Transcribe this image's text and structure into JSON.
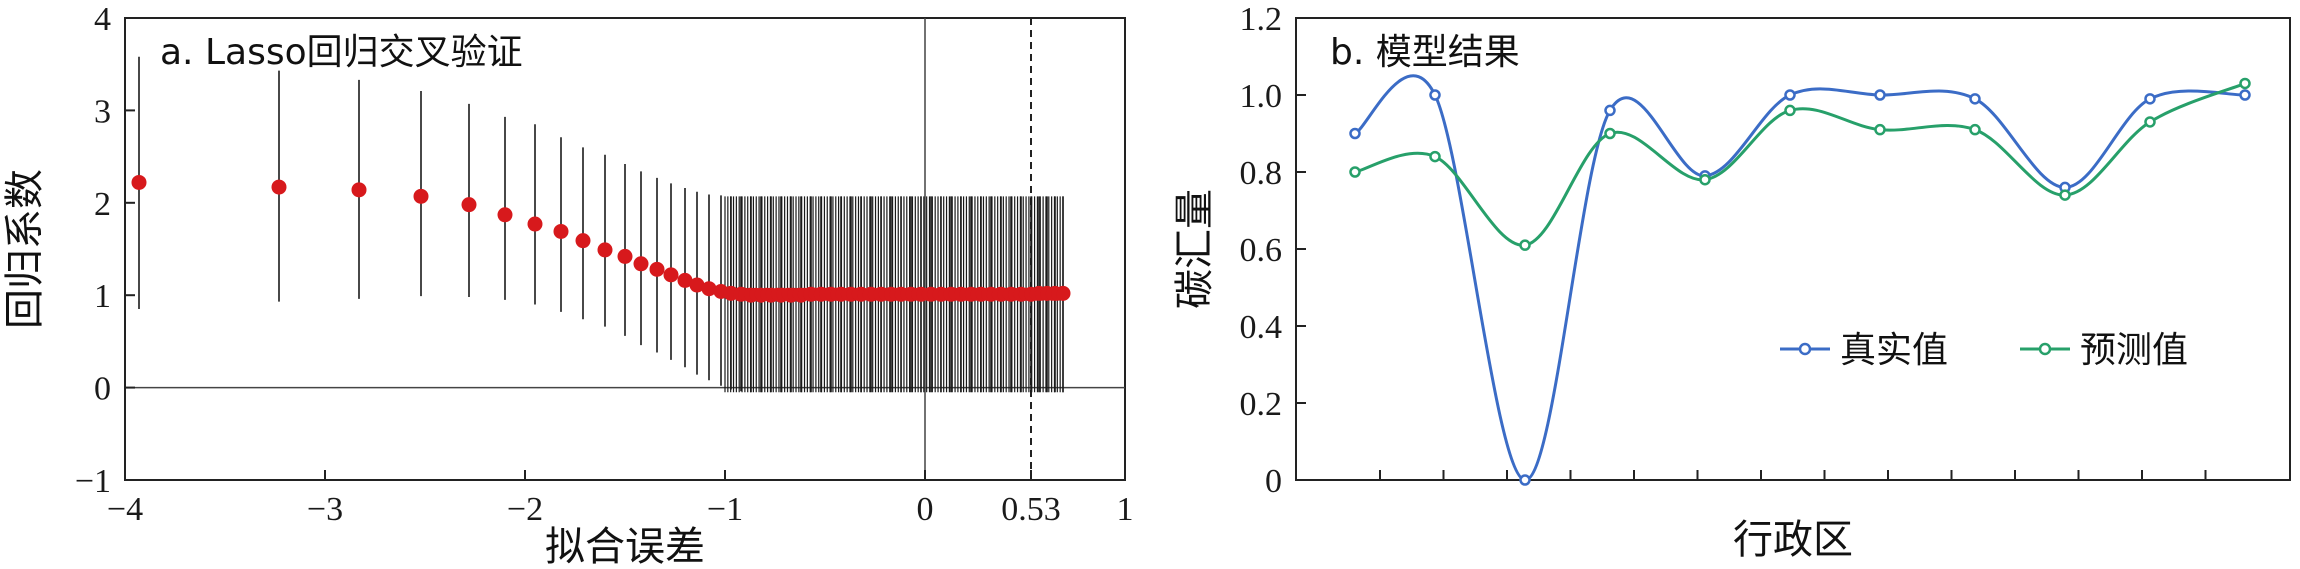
{
  "chart_data": [
    {
      "type": "scatter",
      "title": "a. Lasso回归交叉验证",
      "xlabel": "拟合误差",
      "ylabel": "回归系数",
      "xlim": [
        -4,
        1
      ],
      "ylim": [
        -1,
        4
      ],
      "xticks": [
        "−4",
        "−3",
        "−2",
        "−1",
        "0",
        "0.53",
        "1"
      ],
      "yticks": [
        "−1",
        "0",
        "1",
        "2",
        "3",
        "4"
      ],
      "xtick_values": [
        -4,
        -3,
        -2,
        -1,
        0,
        0.53,
        1
      ],
      "ytick_values": [
        -1,
        0,
        1,
        2,
        3,
        4
      ],
      "reference_lines": {
        "horizontal_y": 0,
        "vertical_x": 0,
        "dashed_x": 0.53
      },
      "point_color": "#d7191c",
      "errorbar_color": "#1a1a1a",
      "series": [
        {
          "x": [
            -3.93,
            -3.23,
            -2.83,
            -2.52,
            -2.28,
            -2.1,
            -1.95,
            -1.82,
            -1.71,
            -1.6,
            -1.5,
            -1.42,
            -1.34,
            -1.27,
            -1.2,
            -1.14,
            -1.08,
            -1.02,
            -0.97,
            -0.92,
            -0.87,
            -0.82,
            -0.77,
            -0.72,
            -0.67,
            -0.62,
            -0.57,
            -0.52,
            -0.47,
            -0.42,
            -0.37,
            -0.32,
            -0.27,
            -0.22,
            -0.17,
            -0.12,
            -0.07,
            -0.02,
            0.03,
            0.08,
            0.13,
            0.18,
            0.23,
            0.28,
            0.33,
            0.38,
            0.43,
            0.48,
            0.53,
            0.57,
            0.61,
            0.65,
            0.69
          ],
          "y": [
            2.22,
            2.17,
            2.14,
            2.07,
            1.98,
            1.87,
            1.77,
            1.69,
            1.59,
            1.49,
            1.42,
            1.34,
            1.28,
            1.22,
            1.16,
            1.11,
            1.07,
            1.04,
            1.02,
            1.01,
            1.0,
            1.0,
            1.0,
            1.0,
            1.0,
            1.0,
            1.01,
            1.01,
            1.01,
            1.01,
            1.01,
            1.01,
            1.01,
            1.01,
            1.01,
            1.01,
            1.01,
            1.01,
            1.01,
            1.01,
            1.01,
            1.01,
            1.01,
            1.01,
            1.01,
            1.01,
            1.01,
            1.01,
            1.01,
            1.02,
            1.02,
            1.02,
            1.02
          ],
          "lower": [
            0.85,
            0.93,
            0.96,
            0.99,
            0.98,
            0.95,
            0.9,
            0.82,
            0.74,
            0.66,
            0.56,
            0.46,
            0.38,
            0.3,
            0.22,
            0.14,
            0.08,
            0.02,
            -0.02,
            -0.04,
            -0.05,
            -0.05,
            -0.05,
            -0.05,
            -0.05,
            -0.05,
            -0.05,
            -0.05,
            -0.05,
            -0.05,
            -0.05,
            -0.05,
            -0.05,
            -0.05,
            -0.05,
            -0.05,
            -0.05,
            -0.05,
            -0.05,
            -0.05,
            -0.05,
            -0.05,
            -0.05,
            -0.05,
            -0.05,
            -0.05,
            -0.05,
            -0.05,
            -0.05,
            -0.05,
            -0.05,
            -0.05,
            -0.05
          ],
          "upper": [
            3.58,
            3.43,
            3.33,
            3.21,
            3.07,
            2.93,
            2.85,
            2.71,
            2.6,
            2.52,
            2.42,
            2.34,
            2.27,
            2.21,
            2.16,
            2.12,
            2.09,
            2.08,
            2.07,
            2.07,
            2.07,
            2.07,
            2.07,
            2.07,
            2.07,
            2.07,
            2.07,
            2.07,
            2.07,
            2.07,
            2.07,
            2.07,
            2.07,
            2.07,
            2.07,
            2.07,
            2.07,
            2.07,
            2.07,
            2.07,
            2.07,
            2.07,
            2.07,
            2.07,
            2.07,
            2.07,
            2.07,
            2.07,
            2.07,
            2.07,
            2.07,
            2.07,
            2.07
          ]
        }
      ],
      "dense_errorbar_band": {
        "x_from": -1.0,
        "x_to": 0.69,
        "count": 120,
        "lower": -0.05,
        "upper": 2.07
      }
    },
    {
      "type": "line",
      "title": "b. 模型结果",
      "xlabel": "行政区",
      "ylabel": "碳汇量",
      "ylim": [
        0,
        1.2
      ],
      "yticks": [
        "0",
        "0.2",
        "0.4",
        "0.6",
        "0.8",
        "1.0",
        "1.2"
      ],
      "ytick_values": [
        0,
        0.2,
        0.4,
        0.6,
        0.8,
        1.0,
        1.2
      ],
      "x": [
        1,
        2,
        3,
        4,
        5,
        6,
        7,
        8,
        9,
        10,
        11
      ],
      "legend_position": "center-right",
      "series": [
        {
          "name": "真实值",
          "color": "#3b6cc6",
          "values": [
            0.9,
            1.0,
            0.0,
            0.96,
            0.79,
            1.0,
            1.0,
            0.99,
            0.76,
            0.99,
            1.0
          ]
        },
        {
          "name": "预测值",
          "color": "#27a06a",
          "values": [
            0.8,
            0.84,
            0.61,
            0.9,
            0.78,
            0.96,
            0.91,
            0.91,
            0.74,
            0.93,
            1.03
          ]
        }
      ]
    }
  ]
}
